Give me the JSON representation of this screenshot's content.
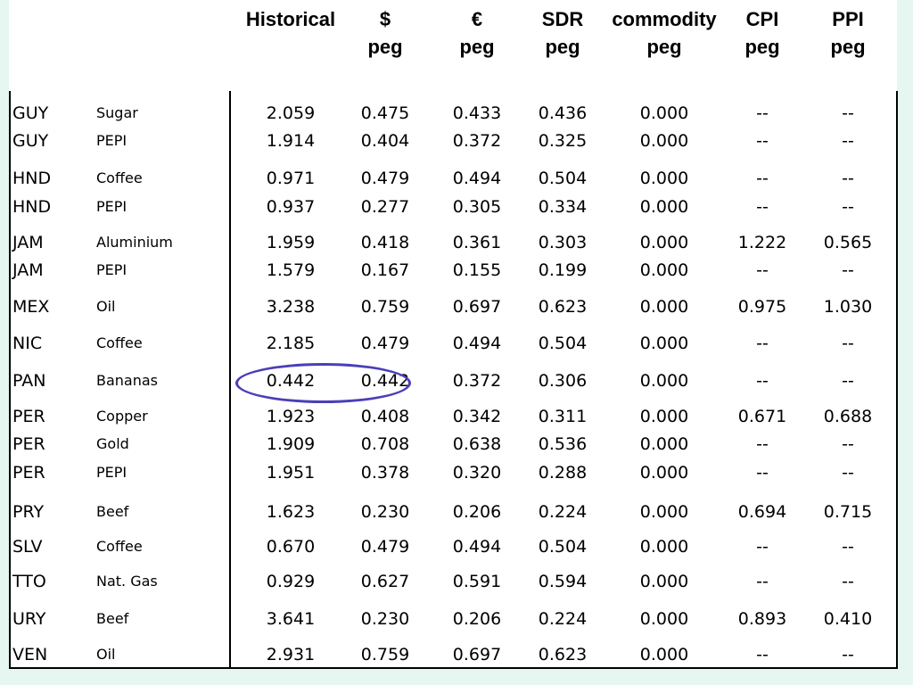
{
  "headers": [
    {
      "line1": "Historical",
      "line2": ""
    },
    {
      "line1": "$",
      "line2": "peg"
    },
    {
      "line1": "€",
      "line2": "peg"
    },
    {
      "line1": "SDR",
      "line2": "peg"
    },
    {
      "line1": "commodity",
      "line2": "peg"
    },
    {
      "line1": "CPI",
      "line2": "peg"
    },
    {
      "line1": "PPI",
      "line2": "peg"
    }
  ],
  "rows": [
    {
      "country": "GUY",
      "commodity": "Sugar",
      "values": [
        "2.059",
        "0.475",
        "0.433",
        "0.436",
        "0.000",
        "--",
        "--"
      ]
    },
    {
      "country": "GUY",
      "commodity": "PEPI",
      "values": [
        "1.914",
        "0.404",
        "0.372",
        "0.325",
        "0.000",
        "--",
        "--"
      ]
    },
    {
      "country": "HND",
      "commodity": "Coffee",
      "values": [
        "0.971",
        "0.479",
        "0.494",
        "0.504",
        "0.000",
        "--",
        "--"
      ]
    },
    {
      "country": "HND",
      "commodity": "PEPI",
      "values": [
        "0.937",
        "0.277",
        "0.305",
        "0.334",
        "0.000",
        "--",
        "--"
      ]
    },
    {
      "country": "JAM",
      "commodity": "Aluminium",
      "values": [
        "1.959",
        "0.418",
        "0.361",
        "0.303",
        "0.000",
        "1.222",
        "0.565"
      ]
    },
    {
      "country": "JAM",
      "commodity": "PEPI",
      "values": [
        "1.579",
        "0.167",
        "0.155",
        "0.199",
        "0.000",
        "--",
        "--"
      ]
    },
    {
      "country": "MEX",
      "commodity": "Oil",
      "values": [
        "3.238",
        "0.759",
        "0.697",
        "0.623",
        "0.000",
        "0.975",
        "1.030"
      ]
    },
    {
      "country": "NIC",
      "commodity": "Coffee",
      "values": [
        "2.185",
        "0.479",
        "0.494",
        "0.504",
        "0.000",
        "--",
        "--"
      ]
    },
    {
      "country": "PAN",
      "commodity": "Bananas",
      "values": [
        "0.442",
        "0.442",
        "0.372",
        "0.306",
        "0.000",
        "--",
        "--"
      ]
    },
    {
      "country": "PER",
      "commodity": "Copper",
      "values": [
        "1.923",
        "0.408",
        "0.342",
        "0.311",
        "0.000",
        "0.671",
        "0.688"
      ]
    },
    {
      "country": "PER",
      "commodity": "Gold",
      "values": [
        "1.909",
        "0.708",
        "0.638",
        "0.536",
        "0.000",
        "--",
        "--"
      ]
    },
    {
      "country": "PER",
      "commodity": "PEPI",
      "values": [
        "1.951",
        "0.378",
        "0.320",
        "0.288",
        "0.000",
        "--",
        "--"
      ]
    },
    {
      "country": "PRY",
      "commodity": "Beef",
      "values": [
        "1.623",
        "0.230",
        "0.206",
        "0.224",
        "0.000",
        "0.694",
        "0.715"
      ]
    },
    {
      "country": "SLV",
      "commodity": "Coffee",
      "values": [
        "0.670",
        "0.479",
        "0.494",
        "0.504",
        "0.000",
        "--",
        "--"
      ]
    },
    {
      "country": "TTO",
      "commodity": "Nat. Gas",
      "values": [
        "0.929",
        "0.627",
        "0.591",
        "0.594",
        "0.000",
        "--",
        "--"
      ]
    },
    {
      "country": "URY",
      "commodity": "Beef",
      "values": [
        "3.641",
        "0.230",
        "0.206",
        "0.224",
        "0.000",
        "0.893",
        "0.410"
      ]
    },
    {
      "country": "VEN",
      "commodity": "Oil",
      "values": [
        "2.931",
        "0.759",
        "0.697",
        "0.623",
        "0.000",
        "--",
        "--"
      ]
    }
  ],
  "colors": {
    "highlight": "#4a3fb8",
    "background": "#e6f6f0"
  }
}
